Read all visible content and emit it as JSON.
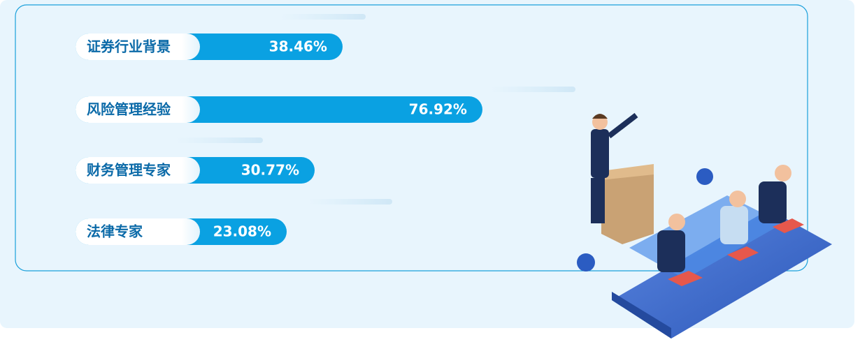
{
  "chart_data": {
    "type": "bar",
    "categories": [
      "证券行业背景",
      "风险管理经验",
      "财务管理专家",
      "法律专家"
    ],
    "values": [
      38.46,
      76.92,
      30.77,
      23.08
    ],
    "value_labels": [
      "38.46%",
      "76.92%",
      "30.77%",
      "23.08%"
    ],
    "color": "#0aa1e2"
  }
}
